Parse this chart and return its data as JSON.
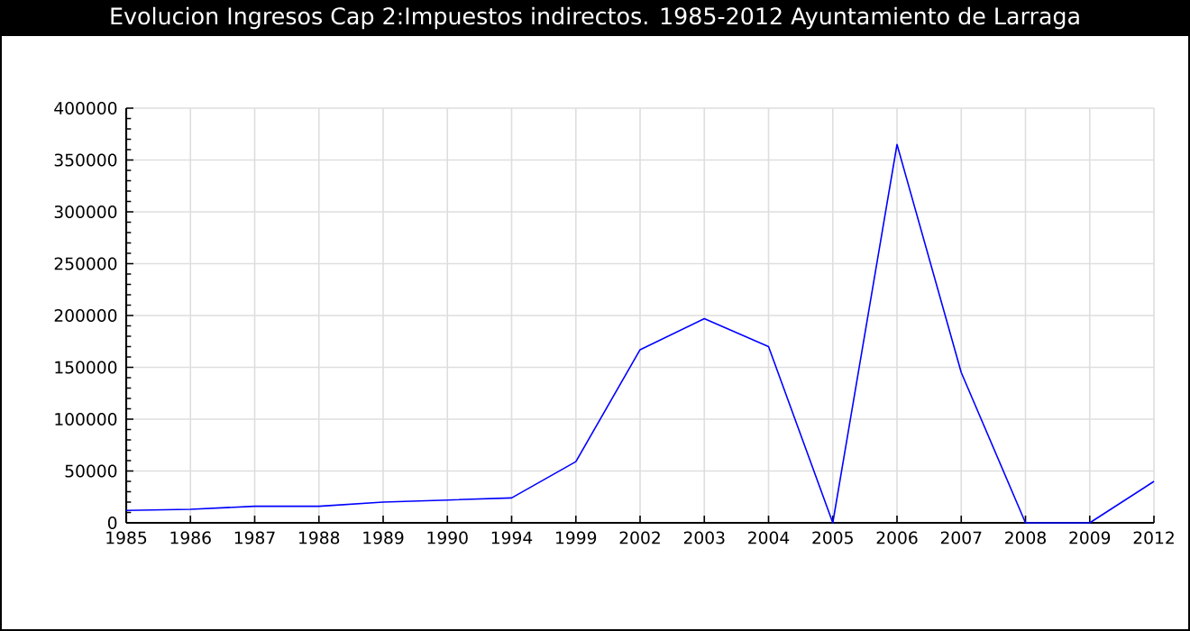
{
  "chart_data": {
    "type": "line",
    "title": "Evolucion Ingresos Cap 2:Impuestos indirectos. 1985-2012 Ayuntamiento de Larraga",
    "categories": [
      "1985",
      "1986",
      "1987",
      "1988",
      "1989",
      "1990",
      "1994",
      "1999",
      "2002",
      "2003",
      "2004",
      "2005",
      "2006",
      "2007",
      "2008",
      "2009",
      "2012"
    ],
    "values": [
      12000,
      13000,
      16000,
      16000,
      20000,
      22000,
      24000,
      59000,
      167000,
      197000,
      170000,
      0,
      365000,
      145000,
      0,
      0,
      40000
    ],
    "color": "#0000ff",
    "ylim": [
      0,
      400000
    ],
    "yticks": [
      0,
      50000,
      100000,
      150000,
      200000,
      250000,
      300000,
      350000,
      400000
    ],
    "grid": true,
    "marker": "none",
    "line_style": "solid"
  }
}
